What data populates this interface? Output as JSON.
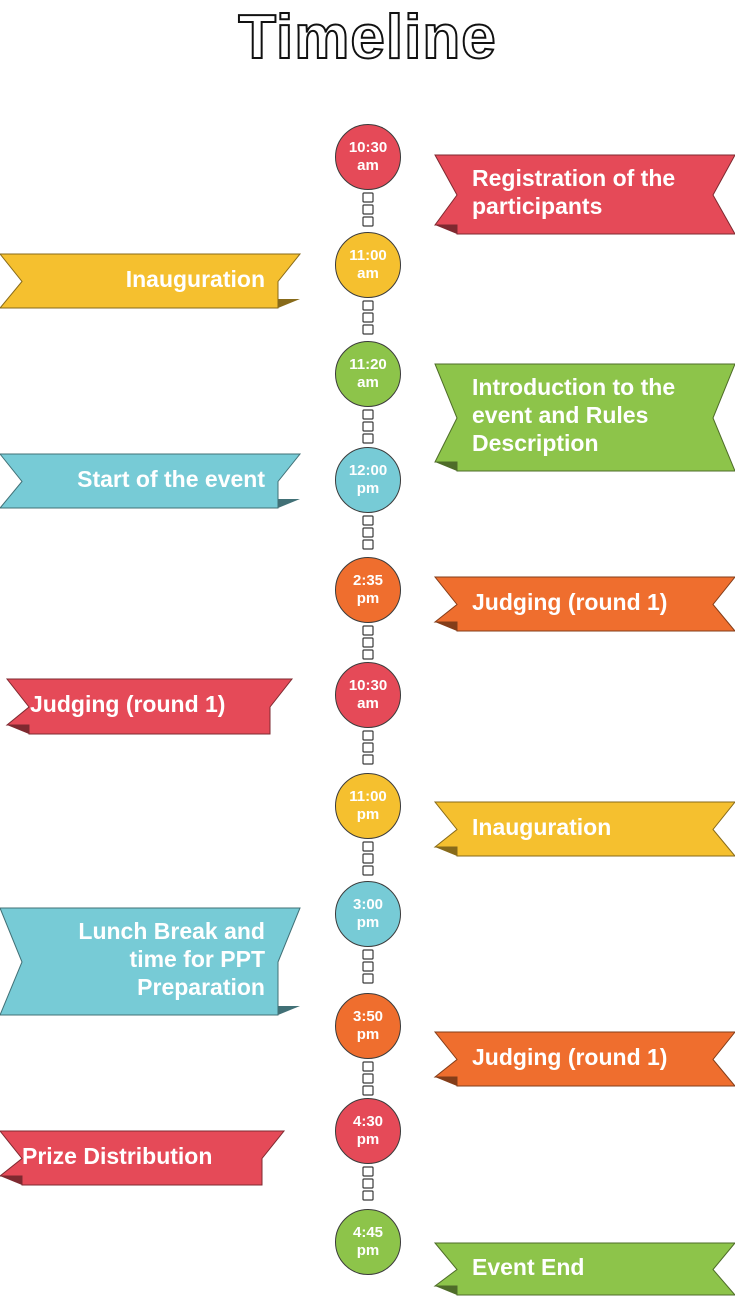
{
  "page": {
    "title": "Timeline"
  },
  "colors": {
    "red": "#e54a58",
    "yellow": "#f5c02f",
    "green": "#8dc44a",
    "blue": "#77cbd6",
    "orange": "#ef6e2e"
  },
  "timeline": [
    {
      "time": [
        "10:30",
        "am"
      ],
      "text": [
        "Registration of the",
        "participants"
      ],
      "side": "right",
      "color": "red"
    },
    {
      "time": [
        "11:00",
        "am"
      ],
      "text": [
        "Inauguration"
      ],
      "side": "left",
      "color": "yellow"
    },
    {
      "time": [
        "11:20",
        "am"
      ],
      "text": [
        "Introduction to the",
        "event and Rules",
        "Description"
      ],
      "side": "right",
      "color": "green"
    },
    {
      "time": [
        "12:00",
        "pm"
      ],
      "text": [
        "Start of the event"
      ],
      "side": "left",
      "color": "blue"
    },
    {
      "time": [
        "2:35",
        "pm"
      ],
      "text": [
        "Judging (round 1)"
      ],
      "side": "right",
      "color": "orange"
    },
    {
      "time": [
        "10:30",
        "am"
      ],
      "text": [
        "Judging (round 1)"
      ],
      "side": "left",
      "color": "red"
    },
    {
      "time": [
        "11:00",
        "pm"
      ],
      "text": [
        "Inauguration"
      ],
      "side": "right",
      "color": "yellow"
    },
    {
      "time": [
        "3:00",
        "pm"
      ],
      "text": [
        "Lunch Break and",
        "time for PPT",
        "Preparation"
      ],
      "side": "left",
      "color": "blue"
    },
    {
      "time": [
        "3:50",
        "pm"
      ],
      "text": [
        "Judging (round 1)"
      ],
      "side": "right",
      "color": "orange"
    },
    {
      "time": [
        "4:30",
        "pm"
      ],
      "text": [
        "Prize Distribution"
      ],
      "side": "left",
      "color": "red"
    },
    {
      "time": [
        "4:45",
        "pm"
      ],
      "text": [
        "Event End"
      ],
      "side": "right",
      "color": "green"
    }
  ]
}
